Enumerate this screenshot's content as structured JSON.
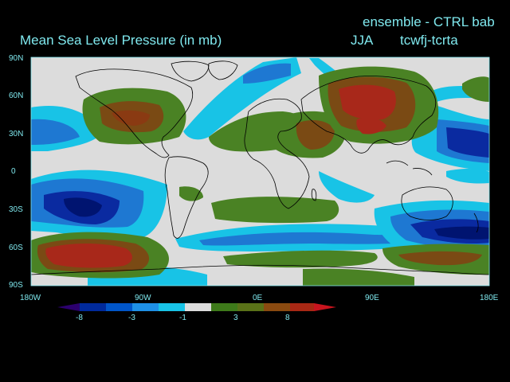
{
  "header": {
    "title": "Mean Sea Level Pressure (in mb)",
    "experiment": "ensemble - CTRL bab",
    "season": "JJA",
    "run": "tcwfj-tcrta"
  },
  "axes": {
    "lat_ticks": [
      "90N",
      "60N",
      "30N",
      "0",
      "30S",
      "60S",
      "90S"
    ],
    "lon_ticks": [
      "180W",
      "90W",
      "0E",
      "90E",
      "180E"
    ]
  },
  "colorbar": {
    "labels": [
      "-8",
      "-3",
      "-1",
      "3",
      "8"
    ],
    "colors": [
      "#2c006e",
      "#002a9c",
      "#0055c8",
      "#1e90e6",
      "#18c3e6",
      "#dcdcdc",
      "#3e7a1a",
      "#5a7218",
      "#8a4a10",
      "#a82814",
      "#c8141e"
    ]
  },
  "colors": {
    "background": "#000000",
    "text": "#7fe8ee",
    "neutral": "#dcdcdc",
    "green": "#4a8224",
    "brown": "#7a4a14",
    "red": "#a8281a",
    "light_blue": "#1ec3e6",
    "mid_blue": "#1e78d2",
    "dark_blue": "#0a2aa0"
  }
}
